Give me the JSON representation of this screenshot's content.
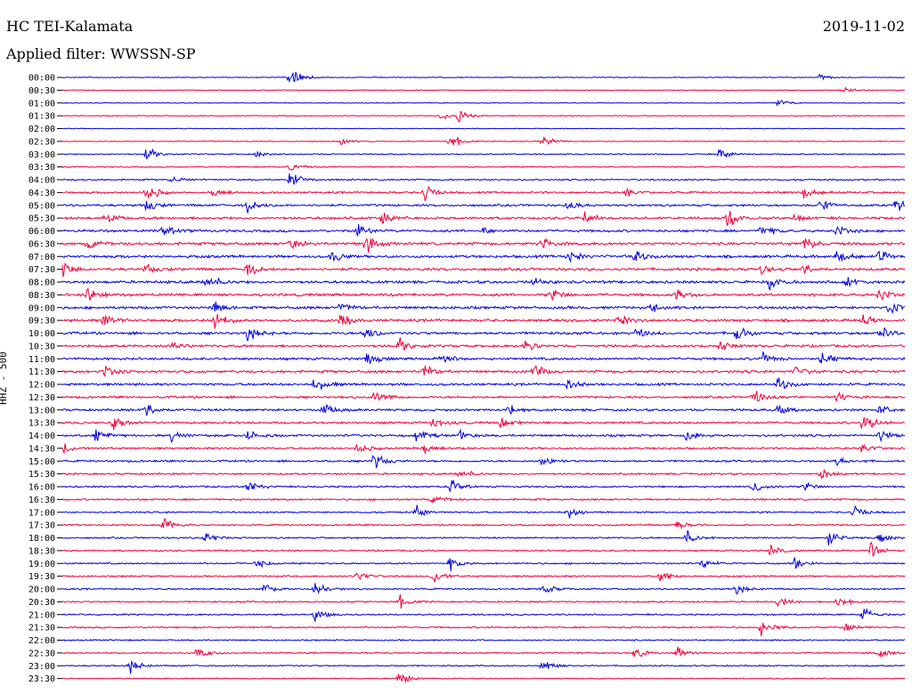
{
  "header": {
    "station": "HC TEI-Kalamata",
    "date": "2019-11-02",
    "filter": "Applied filter: WWSSN-SP"
  },
  "chart_data": {
    "type": "line",
    "title": "HC TEI-Kalamata",
    "ylabel": "HHZ - 500",
    "row_labels": [
      "00:00",
      "00:30",
      "01:00",
      "01:30",
      "02:00",
      "02:30",
      "03:00",
      "03:30",
      "04:00",
      "04:30",
      "05:00",
      "05:30",
      "06:00",
      "06:30",
      "07:00",
      "07:30",
      "08:00",
      "08:30",
      "09:00",
      "09:30",
      "10:00",
      "10:30",
      "11:00",
      "11:30",
      "12:00",
      "12:30",
      "13:00",
      "13:30",
      "14:00",
      "14:30",
      "15:00",
      "15:30",
      "16:00",
      "16:30",
      "17:00",
      "17:30",
      "18:00",
      "18:30",
      "19:00",
      "19:30",
      "20:00",
      "20:30",
      "21:00",
      "21:30",
      "22:00",
      "22:30",
      "23:00",
      "23:30"
    ],
    "series_colors": [
      "#0000e0",
      "#f0003c"
    ],
    "noise_levels": [
      0.4,
      0.35,
      0.35,
      0.4,
      0.35,
      0.4,
      0.5,
      0.55,
      0.7,
      0.9,
      1.0,
      1.1,
      1.1,
      1.2,
      1.2,
      1.2,
      1.2,
      1.2,
      1.2,
      1.2,
      1.2,
      1.1,
      1.1,
      1.1,
      1.1,
      1.0,
      1.0,
      1.0,
      1.0,
      0.9,
      0.9,
      0.8,
      0.8,
      0.8,
      0.7,
      0.7,
      0.7,
      0.7,
      0.7,
      0.7,
      0.7,
      0.7,
      0.7,
      0.7,
      0.6,
      0.6,
      0.6,
      0.5
    ],
    "events": [
      [
        [
          0.27,
          10
        ],
        [
          0.9,
          3
        ]
      ],
      [
        [
          0.93,
          3
        ]
      ],
      [
        [
          0.85,
          3
        ]
      ],
      [
        [
          0.47,
          7
        ],
        [
          0.45,
          4
        ]
      ],
      [],
      [
        [
          0.46,
          8
        ],
        [
          0.57,
          5
        ],
        [
          0.33,
          3
        ]
      ],
      [
        [
          0.1,
          7
        ],
        [
          0.78,
          5
        ],
        [
          0.23,
          3
        ]
      ],
      [
        [
          0.27,
          6
        ]
      ],
      [
        [
          0.27,
          8
        ],
        [
          0.13,
          3
        ]
      ],
      [
        [
          0.1,
          9
        ],
        [
          0.43,
          8
        ],
        [
          0.18,
          4
        ],
        [
          0.67,
          4
        ],
        [
          0.88,
          6
        ]
      ],
      [
        [
          0.22,
          7
        ],
        [
          0.1,
          6
        ],
        [
          0.99,
          8
        ],
        [
          0.6,
          4
        ],
        [
          0.9,
          5
        ]
      ],
      [
        [
          0.05,
          6
        ],
        [
          0.38,
          6
        ],
        [
          0.62,
          5
        ],
        [
          0.79,
          9
        ],
        [
          0.87,
          4
        ]
      ],
      [
        [
          0.35,
          8
        ],
        [
          0.12,
          5
        ],
        [
          0.5,
          4
        ],
        [
          0.83,
          6
        ],
        [
          0.92,
          5
        ]
      ],
      [
        [
          0.36,
          10
        ],
        [
          0.03,
          6
        ],
        [
          0.27,
          6
        ],
        [
          0.57,
          5
        ],
        [
          0.88,
          7
        ]
      ],
      [
        [
          0.32,
          6
        ],
        [
          0.6,
          6
        ],
        [
          0.68,
          6
        ],
        [
          0.92,
          7
        ],
        [
          0.97,
          5
        ]
      ],
      [
        [
          0.0,
          7
        ],
        [
          0.22,
          8
        ],
        [
          0.1,
          4
        ],
        [
          0.83,
          4
        ],
        [
          0.88,
          5
        ]
      ],
      [
        [
          0.17,
          9
        ],
        [
          0.56,
          5
        ],
        [
          0.84,
          7
        ],
        [
          0.93,
          6
        ]
      ],
      [
        [
          0.03,
          6
        ],
        [
          0.58,
          7
        ],
        [
          0.73,
          5
        ],
        [
          0.97,
          6
        ]
      ],
      [
        [
          0.18,
          6
        ],
        [
          0.33,
          5
        ],
        [
          0.7,
          5
        ],
        [
          0.98,
          7
        ]
      ],
      [
        [
          0.18,
          10
        ],
        [
          0.05,
          7
        ],
        [
          0.33,
          6
        ],
        [
          0.66,
          6
        ],
        [
          0.95,
          5
        ]
      ],
      [
        [
          0.22,
          7
        ],
        [
          0.36,
          7
        ],
        [
          0.68,
          5
        ],
        [
          0.8,
          7
        ],
        [
          0.97,
          8
        ]
      ],
      [
        [
          0.4,
          7
        ],
        [
          0.55,
          5
        ],
        [
          0.78,
          5
        ],
        [
          0.13,
          4
        ]
      ],
      [
        [
          0.36,
          6
        ],
        [
          0.45,
          5
        ],
        [
          0.83,
          6
        ],
        [
          0.9,
          6
        ]
      ],
      [
        [
          0.05,
          6
        ],
        [
          0.43,
          6
        ],
        [
          0.56,
          7
        ],
        [
          0.87,
          5
        ]
      ],
      [
        [
          0.3,
          7
        ],
        [
          0.85,
          7
        ],
        [
          0.6,
          4
        ]
      ],
      [
        [
          0.37,
          6
        ],
        [
          0.82,
          7
        ],
        [
          0.92,
          5
        ]
      ],
      [
        [
          0.1,
          7
        ],
        [
          0.31,
          6
        ],
        [
          0.53,
          6
        ],
        [
          0.85,
          5
        ],
        [
          0.97,
          5
        ]
      ],
      [
        [
          0.06,
          7
        ],
        [
          0.44,
          5
        ],
        [
          0.52,
          5
        ],
        [
          0.95,
          10
        ]
      ],
      [
        [
          0.04,
          6
        ],
        [
          0.13,
          6
        ],
        [
          0.22,
          5
        ],
        [
          0.42,
          5
        ],
        [
          0.47,
          5
        ],
        [
          0.74,
          5
        ],
        [
          0.97,
          6
        ]
      ],
      [
        [
          0.0,
          5
        ],
        [
          0.35,
          5
        ],
        [
          0.43,
          4
        ],
        [
          0.95,
          5
        ]
      ],
      [
        [
          0.37,
          7
        ],
        [
          0.57,
          6
        ],
        [
          0.92,
          4
        ]
      ],
      [
        [
          0.47,
          6
        ],
        [
          0.9,
          5
        ]
      ],
      [
        [
          0.22,
          6
        ],
        [
          0.46,
          7
        ],
        [
          0.82,
          6
        ],
        [
          0.88,
          5
        ]
      ],
      [
        [
          0.44,
          5
        ]
      ],
      [
        [
          0.42,
          6
        ],
        [
          0.6,
          5
        ],
        [
          0.94,
          6
        ]
      ],
      [
        [
          0.12,
          6
        ],
        [
          0.73,
          5
        ]
      ],
      [
        [
          0.17,
          6
        ],
        [
          0.74,
          7
        ],
        [
          0.91,
          7
        ],
        [
          0.97,
          5
        ]
      ],
      [
        [
          0.84,
          5
        ],
        [
          0.96,
          7
        ]
      ],
      [
        [
          0.23,
          5
        ],
        [
          0.46,
          6
        ],
        [
          0.76,
          5
        ],
        [
          0.87,
          6
        ]
      ],
      [
        [
          0.35,
          5
        ],
        [
          0.44,
          7
        ],
        [
          0.71,
          6
        ]
      ],
      [
        [
          0.24,
          6
        ],
        [
          0.3,
          7
        ],
        [
          0.57,
          6
        ],
        [
          0.8,
          5
        ]
      ],
      [
        [
          0.4,
          6
        ],
        [
          0.85,
          5
        ],
        [
          0.92,
          5
        ]
      ],
      [
        [
          0.3,
          6
        ],
        [
          0.95,
          7
        ]
      ],
      [
        [
          0.83,
          8
        ],
        [
          0.93,
          4
        ]
      ],
      [],
      [
        [
          0.16,
          6
        ],
        [
          0.68,
          6
        ],
        [
          0.73,
          6
        ],
        [
          0.97,
          7
        ]
      ],
      [
        [
          0.08,
          7
        ],
        [
          0.57,
          6
        ]
      ],
      [
        [
          0.4,
          7
        ]
      ]
    ]
  }
}
